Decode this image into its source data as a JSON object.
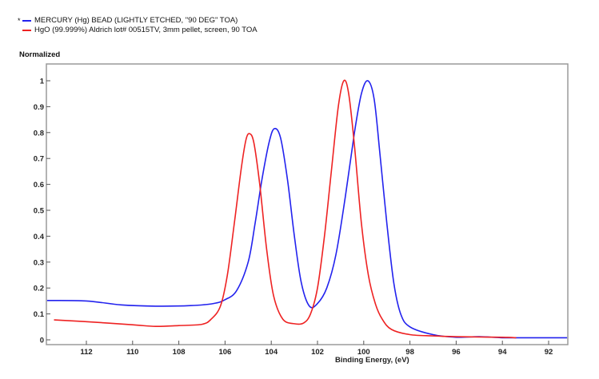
{
  "legend": [
    {
      "marker": "*",
      "label": "MERCURY (Hg) BEAD (LIGHTLY ETCHED, \"90 DEG\" TOA)",
      "color": "#2222ee"
    },
    {
      "marker": "",
      "label": "HgO (99.999%) Aldrich lot# 00515TV, 3mm pellet, screen, 90 TOA",
      "color": "#ee2222"
    }
  ],
  "chart_data": {
    "type": "line",
    "title": "",
    "xlabel": "Binding Energy, (eV)",
    "ylabel": "Normalized",
    "xlim": [
      113.7,
      91.2
    ],
    "ylim": [
      -0.02,
      1.06
    ],
    "x_reversed": true,
    "xticks": [
      112,
      110,
      108,
      106,
      104,
      102,
      100,
      98,
      96,
      94,
      92
    ],
    "yticks": [
      0,
      0.1,
      0.2,
      0.3,
      0.4,
      0.5,
      0.6,
      0.7,
      0.8,
      0.9,
      1
    ],
    "ytick_labels": [
      "0",
      "0.1",
      "0.2",
      "0.3",
      "0.4",
      "0.5",
      "0.6",
      "0.7",
      "0.8",
      "0.9",
      "1"
    ],
    "grid": false,
    "legend_position": "top-left, above plot",
    "series": [
      {
        "name": "MERCURY (Hg) BEAD (LIGHTLY ETCHED, \"90 DEG\" TOA)",
        "color": "#2222ee",
        "x": [
          113.7,
          112,
          110.5,
          109,
          107.5,
          106.5,
          106,
          105.5,
          105,
          104.7,
          104.4,
          104.1,
          103.87,
          103.6,
          103.3,
          103,
          102.7,
          102.35,
          102,
          101.6,
          101.2,
          100.8,
          100.4,
          100.1,
          99.82,
          99.55,
          99.3,
          99,
          98.7,
          98.4,
          98,
          97,
          96,
          95,
          94,
          93,
          91.2
        ],
        "y": [
          0.152,
          0.15,
          0.135,
          0.13,
          0.132,
          0.14,
          0.155,
          0.19,
          0.3,
          0.45,
          0.62,
          0.76,
          0.815,
          0.78,
          0.62,
          0.4,
          0.22,
          0.13,
          0.14,
          0.2,
          0.33,
          0.55,
          0.8,
          0.95,
          1.0,
          0.93,
          0.72,
          0.45,
          0.22,
          0.1,
          0.05,
          0.02,
          0.01,
          0.012,
          0.008,
          0.008,
          0.008
        ]
      },
      {
        "name": "HgO (99.999%) Aldrich lot# 00515TV, 3mm pellet, screen, 90 TOA",
        "color": "#ee2222",
        "x": [
          113.4,
          112,
          110,
          109,
          108,
          107,
          106.6,
          106.2,
          105.9,
          105.6,
          105.3,
          105.1,
          104.94,
          104.75,
          104.5,
          104.2,
          103.9,
          103.5,
          103,
          102.6,
          102.3,
          102,
          101.7,
          101.4,
          101.1,
          100.86,
          100.65,
          100.4,
          100.1,
          99.8,
          99.5,
          99.2,
          98.8,
          98,
          97,
          96,
          94,
          93.4
        ],
        "y": [
          0.077,
          0.07,
          0.058,
          0.052,
          0.055,
          0.06,
          0.08,
          0.13,
          0.25,
          0.45,
          0.66,
          0.77,
          0.796,
          0.76,
          0.6,
          0.35,
          0.17,
          0.08,
          0.062,
          0.065,
          0.1,
          0.2,
          0.4,
          0.65,
          0.9,
          1.0,
          0.95,
          0.75,
          0.45,
          0.25,
          0.14,
          0.08,
          0.04,
          0.02,
          0.015,
          0.012,
          0.01,
          0.008
        ]
      }
    ]
  }
}
